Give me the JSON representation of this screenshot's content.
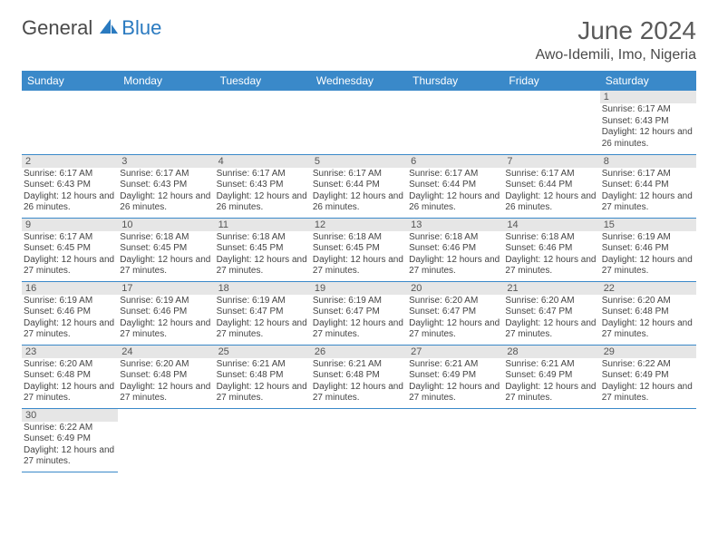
{
  "brand": {
    "part1": "General",
    "part2": "Blue",
    "logo_color": "#2a7ac0"
  },
  "title": "June 2024",
  "location": "Awo-Idemili, Imo, Nigeria",
  "colors": {
    "header_bg": "#3a89c9",
    "header_fg": "#ffffff",
    "day_bg": "#e6e6e6",
    "rule": "#3a89c9"
  },
  "weekdays": [
    "Sunday",
    "Monday",
    "Tuesday",
    "Wednesday",
    "Thursday",
    "Friday",
    "Saturday"
  ],
  "weeks": [
    [
      null,
      null,
      null,
      null,
      null,
      null,
      {
        "d": "1",
        "sr": "6:17 AM",
        "ss": "6:43 PM",
        "dl": "12 hours and 26 minutes."
      }
    ],
    [
      {
        "d": "2",
        "sr": "6:17 AM",
        "ss": "6:43 PM",
        "dl": "12 hours and 26 minutes."
      },
      {
        "d": "3",
        "sr": "6:17 AM",
        "ss": "6:43 PM",
        "dl": "12 hours and 26 minutes."
      },
      {
        "d": "4",
        "sr": "6:17 AM",
        "ss": "6:43 PM",
        "dl": "12 hours and 26 minutes."
      },
      {
        "d": "5",
        "sr": "6:17 AM",
        "ss": "6:44 PM",
        "dl": "12 hours and 26 minutes."
      },
      {
        "d": "6",
        "sr": "6:17 AM",
        "ss": "6:44 PM",
        "dl": "12 hours and 26 minutes."
      },
      {
        "d": "7",
        "sr": "6:17 AM",
        "ss": "6:44 PM",
        "dl": "12 hours and 26 minutes."
      },
      {
        "d": "8",
        "sr": "6:17 AM",
        "ss": "6:44 PM",
        "dl": "12 hours and 27 minutes."
      }
    ],
    [
      {
        "d": "9",
        "sr": "6:17 AM",
        "ss": "6:45 PM",
        "dl": "12 hours and 27 minutes."
      },
      {
        "d": "10",
        "sr": "6:18 AM",
        "ss": "6:45 PM",
        "dl": "12 hours and 27 minutes."
      },
      {
        "d": "11",
        "sr": "6:18 AM",
        "ss": "6:45 PM",
        "dl": "12 hours and 27 minutes."
      },
      {
        "d": "12",
        "sr": "6:18 AM",
        "ss": "6:45 PM",
        "dl": "12 hours and 27 minutes."
      },
      {
        "d": "13",
        "sr": "6:18 AM",
        "ss": "6:46 PM",
        "dl": "12 hours and 27 minutes."
      },
      {
        "d": "14",
        "sr": "6:18 AM",
        "ss": "6:46 PM",
        "dl": "12 hours and 27 minutes."
      },
      {
        "d": "15",
        "sr": "6:19 AM",
        "ss": "6:46 PM",
        "dl": "12 hours and 27 minutes."
      }
    ],
    [
      {
        "d": "16",
        "sr": "6:19 AM",
        "ss": "6:46 PM",
        "dl": "12 hours and 27 minutes."
      },
      {
        "d": "17",
        "sr": "6:19 AM",
        "ss": "6:46 PM",
        "dl": "12 hours and 27 minutes."
      },
      {
        "d": "18",
        "sr": "6:19 AM",
        "ss": "6:47 PM",
        "dl": "12 hours and 27 minutes."
      },
      {
        "d": "19",
        "sr": "6:19 AM",
        "ss": "6:47 PM",
        "dl": "12 hours and 27 minutes."
      },
      {
        "d": "20",
        "sr": "6:20 AM",
        "ss": "6:47 PM",
        "dl": "12 hours and 27 minutes."
      },
      {
        "d": "21",
        "sr": "6:20 AM",
        "ss": "6:47 PM",
        "dl": "12 hours and 27 minutes."
      },
      {
        "d": "22",
        "sr": "6:20 AM",
        "ss": "6:48 PM",
        "dl": "12 hours and 27 minutes."
      }
    ],
    [
      {
        "d": "23",
        "sr": "6:20 AM",
        "ss": "6:48 PM",
        "dl": "12 hours and 27 minutes."
      },
      {
        "d": "24",
        "sr": "6:20 AM",
        "ss": "6:48 PM",
        "dl": "12 hours and 27 minutes."
      },
      {
        "d": "25",
        "sr": "6:21 AM",
        "ss": "6:48 PM",
        "dl": "12 hours and 27 minutes."
      },
      {
        "d": "26",
        "sr": "6:21 AM",
        "ss": "6:48 PM",
        "dl": "12 hours and 27 minutes."
      },
      {
        "d": "27",
        "sr": "6:21 AM",
        "ss": "6:49 PM",
        "dl": "12 hours and 27 minutes."
      },
      {
        "d": "28",
        "sr": "6:21 AM",
        "ss": "6:49 PM",
        "dl": "12 hours and 27 minutes."
      },
      {
        "d": "29",
        "sr": "6:22 AM",
        "ss": "6:49 PM",
        "dl": "12 hours and 27 minutes."
      }
    ],
    [
      {
        "d": "30",
        "sr": "6:22 AM",
        "ss": "6:49 PM",
        "dl": "12 hours and 27 minutes."
      },
      null,
      null,
      null,
      null,
      null,
      null
    ]
  ],
  "labels": {
    "sunrise": "Sunrise: ",
    "sunset": "Sunset: ",
    "daylight": "Daylight: "
  }
}
